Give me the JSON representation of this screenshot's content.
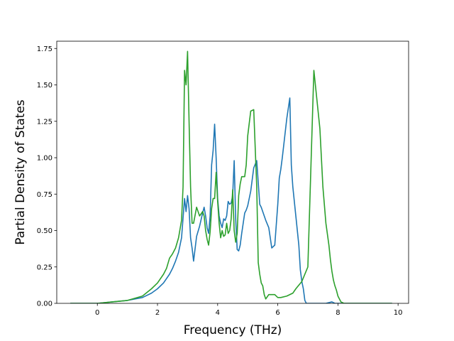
{
  "chart_data": {
    "type": "line",
    "title": "",
    "xlabel": "Frequency (THz)",
    "ylabel": "Partial Density of States",
    "xlim": [
      -1.35,
      10.35
    ],
    "ylim": [
      0,
      1.8
    ],
    "xticks": [
      0,
      2,
      4,
      6,
      8,
      10
    ],
    "xtick_labels": [
      "0",
      "2",
      "4",
      "6",
      "8",
      "10"
    ],
    "yticks": [
      0.0,
      0.25,
      0.5,
      0.75,
      1.0,
      1.25,
      1.5,
      1.75
    ],
    "ytick_labels": [
      "0.00",
      "0.25",
      "0.50",
      "0.75",
      "1.00",
      "1.25",
      "1.50",
      "1.75"
    ],
    "grid": false,
    "series": [
      {
        "color": "#1f77b4",
        "x": [
          -0.9,
          0.0,
          0.5,
          1.0,
          1.5,
          1.8,
          2.0,
          2.2,
          2.4,
          2.5,
          2.6,
          2.7,
          2.8,
          2.9,
          2.95,
          3.0,
          3.05,
          3.1,
          3.15,
          3.2,
          3.3,
          3.4,
          3.5,
          3.55,
          3.6,
          3.65,
          3.7,
          3.75,
          3.8,
          3.85,
          3.9,
          3.95,
          4.0,
          4.05,
          4.1,
          4.15,
          4.2,
          4.25,
          4.3,
          4.35,
          4.4,
          4.45,
          4.5,
          4.55,
          4.6,
          4.65,
          4.7,
          4.75,
          4.8,
          4.85,
          4.9,
          4.95,
          5.0,
          5.1,
          5.2,
          5.3,
          5.4,
          5.45,
          5.5,
          5.55,
          5.6,
          5.7,
          5.8,
          5.9,
          6.0,
          6.05,
          6.1,
          6.15,
          6.2,
          6.3,
          6.4,
          6.45,
          6.5,
          6.6,
          6.7,
          6.75,
          6.8,
          6.85,
          6.9,
          6.95,
          7.0,
          7.2,
          7.4,
          7.6,
          7.8,
          7.9,
          8.0,
          8.5,
          9.0,
          9.8
        ],
        "y": [
          0.0,
          0.0,
          0.01,
          0.02,
          0.04,
          0.07,
          0.1,
          0.14,
          0.2,
          0.24,
          0.29,
          0.35,
          0.45,
          0.72,
          0.63,
          0.74,
          0.65,
          0.45,
          0.38,
          0.29,
          0.46,
          0.53,
          0.62,
          0.66,
          0.6,
          0.52,
          0.48,
          0.6,
          0.95,
          1.05,
          1.23,
          1.0,
          0.72,
          0.6,
          0.55,
          0.52,
          0.58,
          0.57,
          0.6,
          0.7,
          0.68,
          0.69,
          0.74,
          0.98,
          0.58,
          0.37,
          0.36,
          0.4,
          0.48,
          0.55,
          0.62,
          0.64,
          0.67,
          0.77,
          0.93,
          0.98,
          0.68,
          0.66,
          0.63,
          0.6,
          0.57,
          0.52,
          0.38,
          0.4,
          0.68,
          0.86,
          0.92,
          1.0,
          1.09,
          1.27,
          1.41,
          0.95,
          0.8,
          0.6,
          0.4,
          0.23,
          0.15,
          0.1,
          0.02,
          0.0,
          0.0,
          0.0,
          0.0,
          0.0,
          0.01,
          0.0,
          0.0,
          0.0,
          0.0,
          0.0
        ]
      },
      {
        "color": "#2ca02c",
        "x": [
          -0.9,
          0.0,
          0.5,
          1.0,
          1.5,
          1.8,
          2.0,
          2.2,
          2.3,
          2.4,
          2.5,
          2.6,
          2.7,
          2.8,
          2.85,
          2.9,
          2.95,
          3.0,
          3.05,
          3.1,
          3.15,
          3.2,
          3.3,
          3.4,
          3.5,
          3.55,
          3.6,
          3.65,
          3.7,
          3.75,
          3.8,
          3.85,
          3.9,
          3.95,
          4.0,
          4.05,
          4.1,
          4.15,
          4.2,
          4.25,
          4.3,
          4.35,
          4.4,
          4.45,
          4.5,
          4.55,
          4.6,
          4.65,
          4.7,
          4.75,
          4.8,
          4.85,
          4.9,
          4.95,
          5.0,
          5.1,
          5.2,
          5.3,
          5.35,
          5.4,
          5.45,
          5.5,
          5.55,
          5.6,
          5.7,
          5.8,
          5.9,
          6.0,
          6.1,
          6.3,
          6.5,
          6.6,
          6.8,
          7.0,
          7.2,
          7.4,
          7.5,
          7.6,
          7.7,
          7.75,
          7.8,
          7.85,
          7.9,
          7.95,
          8.0,
          8.1,
          8.2,
          8.3,
          8.5,
          8.7,
          8.85,
          8.9,
          9.0,
          9.8
        ],
        "y": [
          0.0,
          0.0,
          0.01,
          0.02,
          0.05,
          0.1,
          0.14,
          0.2,
          0.24,
          0.31,
          0.34,
          0.38,
          0.45,
          0.57,
          0.8,
          1.6,
          1.5,
          1.73,
          1.25,
          0.8,
          0.55,
          0.55,
          0.66,
          0.6,
          0.63,
          0.6,
          0.5,
          0.44,
          0.4,
          0.49,
          0.65,
          0.72,
          0.72,
          0.9,
          0.7,
          0.55,
          0.45,
          0.5,
          0.46,
          0.47,
          0.55,
          0.48,
          0.5,
          0.58,
          0.78,
          0.5,
          0.42,
          0.48,
          0.74,
          0.82,
          0.87,
          0.87,
          0.87,
          0.95,
          1.15,
          1.32,
          1.33,
          0.8,
          0.28,
          0.2,
          0.14,
          0.12,
          0.06,
          0.03,
          0.06,
          0.06,
          0.06,
          0.04,
          0.04,
          0.05,
          0.07,
          0.1,
          0.15,
          0.25,
          1.6,
          1.2,
          0.8,
          0.55,
          0.4,
          0.3,
          0.22,
          0.16,
          0.12,
          0.09,
          0.05,
          0.01,
          0.0,
          0.0,
          0.0,
          0.0,
          0.0,
          0.0,
          0.0,
          0.0
        ]
      }
    ]
  }
}
